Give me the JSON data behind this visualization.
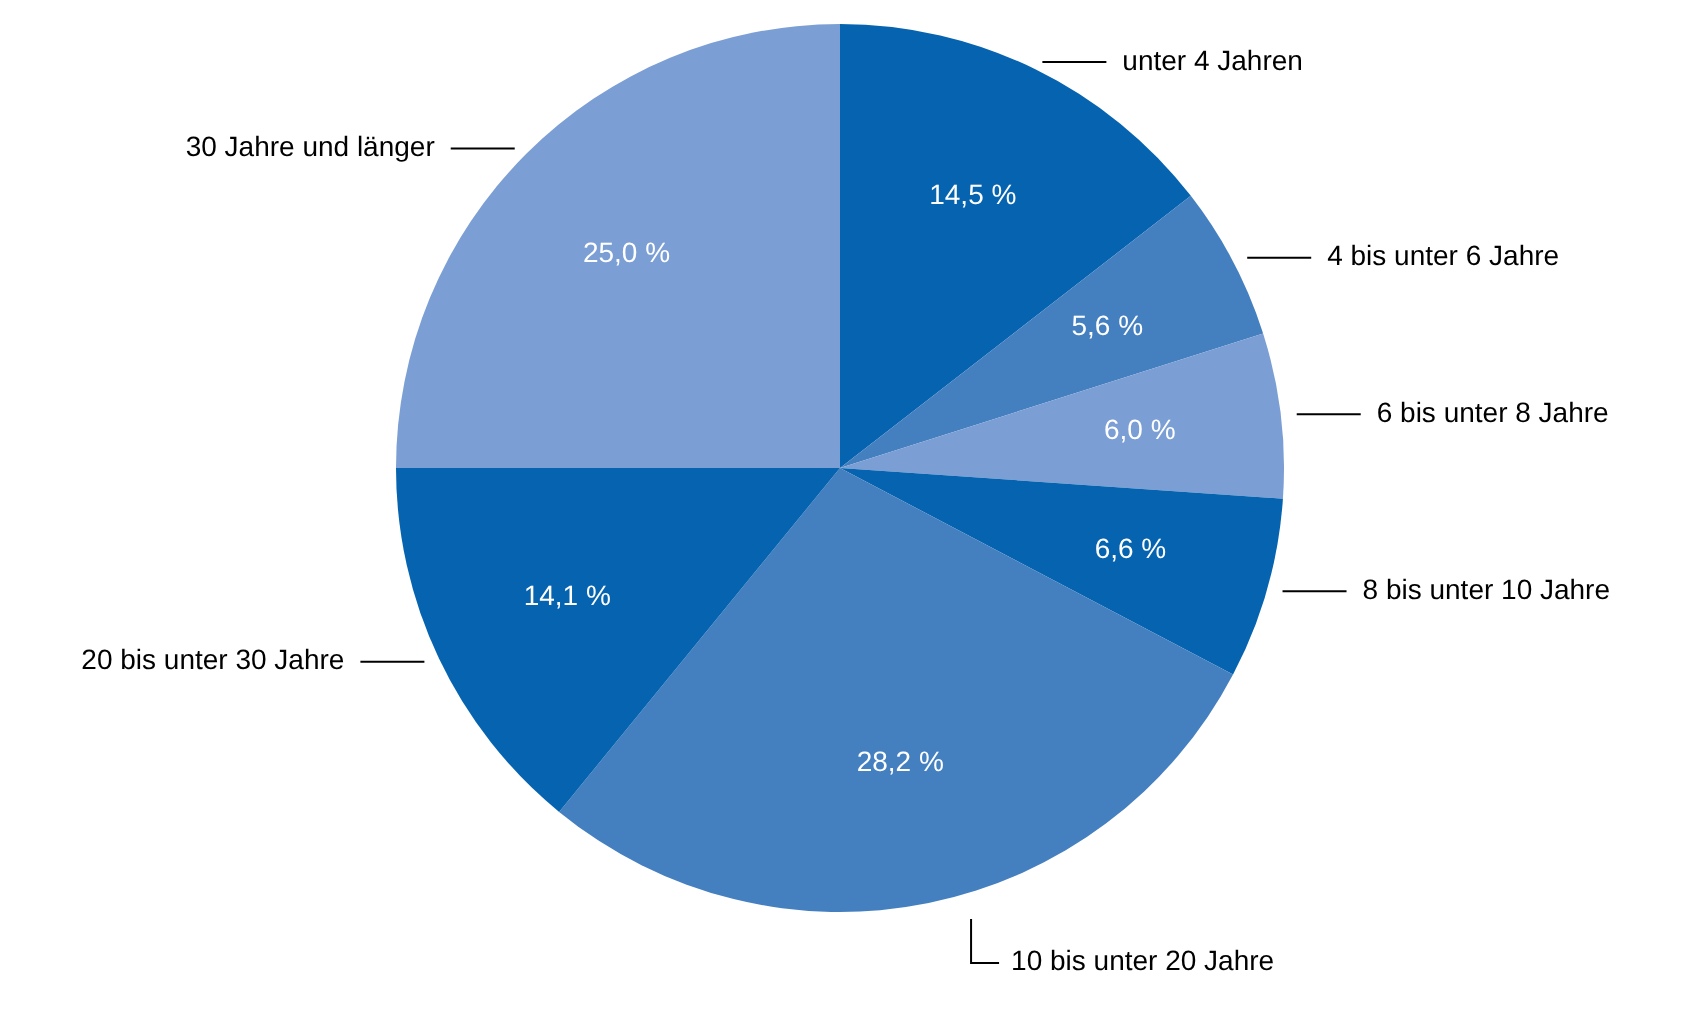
{
  "chart_data": {
    "type": "pie",
    "categories": [
      "unter 4 Jahren",
      "4 bis unter 6 Jahre",
      "6 bis unter 8 Jahre",
      "8 bis unter 10 Jahre",
      "10 bis unter 20 Jahre",
      "20 bis unter 30 Jahre",
      "30 Jahre und länger"
    ],
    "values": [
      14.5,
      5.6,
      6.0,
      6.6,
      28.2,
      14.1,
      25.0
    ],
    "value_labels": [
      "14,5 %",
      "5,6 %",
      "6,0 %",
      "6,6 %",
      "28,2 %",
      "14,1 %",
      "25,0 %"
    ],
    "colors": [
      "#0563b0",
      "#447fc0",
      "#7b9ed4",
      "#0563b0",
      "#447fc0",
      "#0563b0",
      "#7b9ed4"
    ]
  }
}
